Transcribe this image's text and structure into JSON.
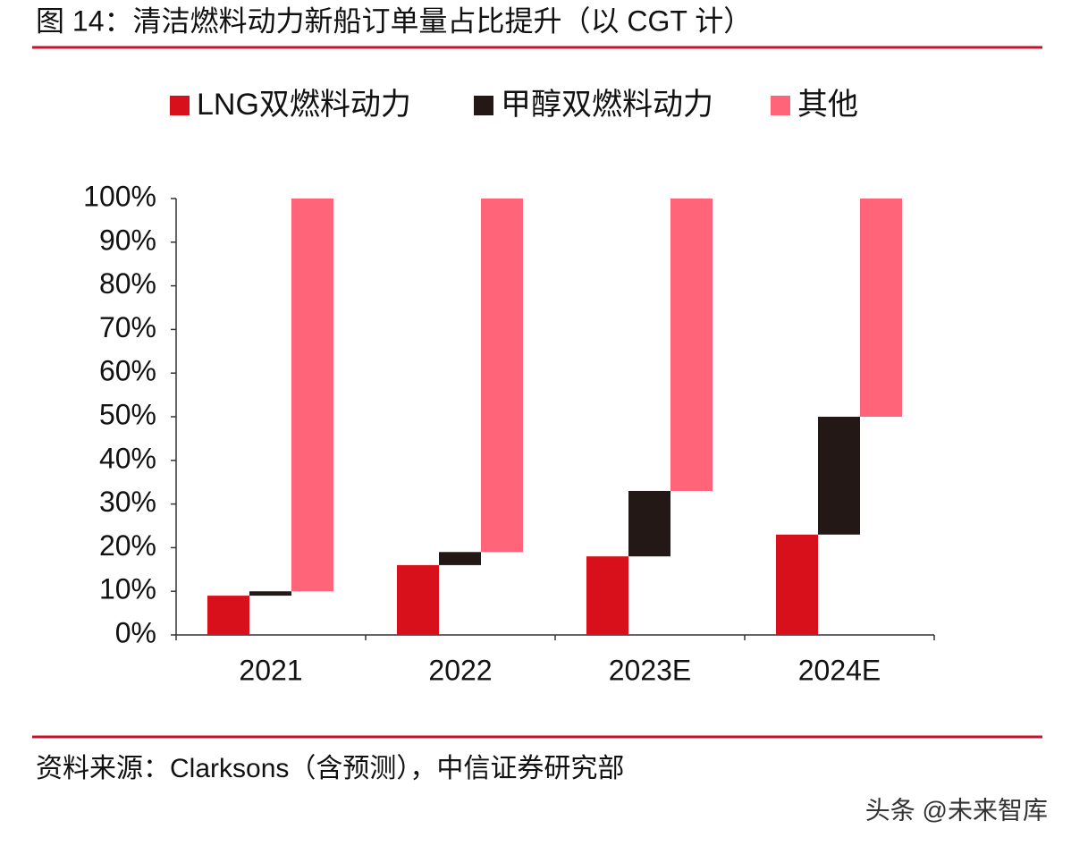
{
  "chart_data": {
    "type": "waterfall-stack",
    "title": "图 14：清洁燃料动力新船订单量占比提升（以 CGT 计）",
    "source": "资料来源：Clarksons（含预测），中信证券研究部",
    "watermark": "头条 @未来智库",
    "categories": [
      "2021",
      "2022",
      "2023E",
      "2024E"
    ],
    "series": [
      {
        "name": "LNG双燃料动力",
        "color": "#d7101b",
        "values": [
          9,
          16,
          18,
          23
        ]
      },
      {
        "name": "甲醇双燃料动力",
        "color": "#231815",
        "values": [
          1,
          3,
          15,
          27
        ]
      },
      {
        "name": "其他",
        "color": "#ff6478",
        "values": [
          90,
          81,
          67,
          50
        ]
      }
    ],
    "ylim": [
      0,
      100
    ],
    "yticks": [
      {
        "value": 0,
        "label": "0%"
      },
      {
        "value": 10,
        "label": "10%"
      },
      {
        "value": 20,
        "label": "20%"
      },
      {
        "value": 30,
        "label": "30%"
      },
      {
        "value": 40,
        "label": "40%"
      },
      {
        "value": 50,
        "label": "50%"
      },
      {
        "value": 60,
        "label": "60%"
      },
      {
        "value": 70,
        "label": "70%"
      },
      {
        "value": 80,
        "label": "80%"
      },
      {
        "value": 90,
        "label": "90%"
      },
      {
        "value": 100,
        "label": "100%"
      }
    ],
    "grid": false
  }
}
